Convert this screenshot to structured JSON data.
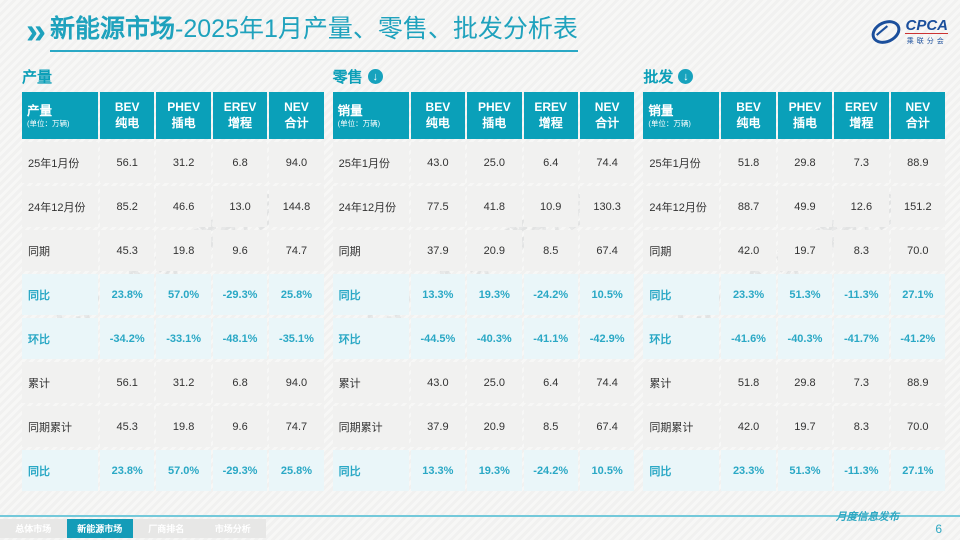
{
  "slide": {
    "title_bold": "新能源市场",
    "title_rest": "-2025年1月产量、零售、批发分析表",
    "publish_label": "月度信息发布",
    "page_number": "6"
  },
  "logo": {
    "name": "CPCA",
    "subtitle": "乘联分会",
    "watermark": "CPCA 乘联分会"
  },
  "tables": [
    {
      "section_label": "产量",
      "download_icon": false,
      "header": {
        "label": "产量",
        "unit": "(单位：万辆)",
        "columns": [
          {
            "en": "BEV",
            "cn": "纯电"
          },
          {
            "en": "PHEV",
            "cn": "插电"
          },
          {
            "en": "EREV",
            "cn": "增程"
          },
          {
            "en": "NEV",
            "cn": "合计"
          }
        ]
      },
      "rows": [
        {
          "label": "25年1月份",
          "type": "data",
          "values": [
            "56.1",
            "31.2",
            "6.8",
            "94.0"
          ]
        },
        {
          "label": "24年12月份",
          "type": "data",
          "values": [
            "85.2",
            "46.6",
            "13.0",
            "144.8"
          ]
        },
        {
          "label": "同期",
          "type": "data",
          "values": [
            "45.3",
            "19.8",
            "9.6",
            "74.7"
          ]
        },
        {
          "label": "同比",
          "type": "pct",
          "values": [
            "23.8%",
            "57.0%",
            "-29.3%",
            "25.8%"
          ]
        },
        {
          "label": "环比",
          "type": "pct",
          "values": [
            "-34.2%",
            "-33.1%",
            "-48.1%",
            "-35.1%"
          ]
        },
        {
          "label": "累计",
          "type": "data",
          "values": [
            "56.1",
            "31.2",
            "6.8",
            "94.0"
          ]
        },
        {
          "label": "同期累计",
          "type": "data",
          "values": [
            "45.3",
            "19.8",
            "9.6",
            "74.7"
          ]
        },
        {
          "label": "同比",
          "type": "pct",
          "values": [
            "23.8%",
            "57.0%",
            "-29.3%",
            "25.8%"
          ]
        }
      ]
    },
    {
      "section_label": "零售",
      "download_icon": true,
      "header": {
        "label": "销量",
        "unit": "(单位：万辆)",
        "columns": [
          {
            "en": "BEV",
            "cn": "纯电"
          },
          {
            "en": "PHEV",
            "cn": "插电"
          },
          {
            "en": "EREV",
            "cn": "增程"
          },
          {
            "en": "NEV",
            "cn": "合计"
          }
        ]
      },
      "rows": [
        {
          "label": "25年1月份",
          "type": "data",
          "values": [
            "43.0",
            "25.0",
            "6.4",
            "74.4"
          ]
        },
        {
          "label": "24年12月份",
          "type": "data",
          "values": [
            "77.5",
            "41.8",
            "10.9",
            "130.3"
          ]
        },
        {
          "label": "同期",
          "type": "data",
          "values": [
            "37.9",
            "20.9",
            "8.5",
            "67.4"
          ]
        },
        {
          "label": "同比",
          "type": "pct",
          "values": [
            "13.3%",
            "19.3%",
            "-24.2%",
            "10.5%"
          ]
        },
        {
          "label": "环比",
          "type": "pct",
          "values": [
            "-44.5%",
            "-40.3%",
            "-41.1%",
            "-42.9%"
          ]
        },
        {
          "label": "累计",
          "type": "data",
          "values": [
            "43.0",
            "25.0",
            "6.4",
            "74.4"
          ]
        },
        {
          "label": "同期累计",
          "type": "data",
          "values": [
            "37.9",
            "20.9",
            "8.5",
            "67.4"
          ]
        },
        {
          "label": "同比",
          "type": "pct",
          "values": [
            "13.3%",
            "19.3%",
            "-24.2%",
            "10.5%"
          ]
        }
      ]
    },
    {
      "section_label": "批发",
      "download_icon": true,
      "header": {
        "label": "销量",
        "unit": "(单位：万辆)",
        "columns": [
          {
            "en": "BEV",
            "cn": "纯电"
          },
          {
            "en": "PHEV",
            "cn": "插电"
          },
          {
            "en": "EREV",
            "cn": "增程"
          },
          {
            "en": "NEV",
            "cn": "合计"
          }
        ]
      },
      "rows": [
        {
          "label": "25年1月份",
          "type": "data",
          "values": [
            "51.8",
            "29.8",
            "7.3",
            "88.9"
          ]
        },
        {
          "label": "24年12月份",
          "type": "data",
          "values": [
            "88.7",
            "49.9",
            "12.6",
            "151.2"
          ]
        },
        {
          "label": "同期",
          "type": "data",
          "values": [
            "42.0",
            "19.7",
            "8.3",
            "70.0"
          ]
        },
        {
          "label": "同比",
          "type": "pct",
          "values": [
            "23.3%",
            "51.3%",
            "-11.3%",
            "27.1%"
          ]
        },
        {
          "label": "环比",
          "type": "pct",
          "values": [
            "-41.6%",
            "-40.3%",
            "-41.7%",
            "-41.2%"
          ]
        },
        {
          "label": "累计",
          "type": "data",
          "values": [
            "51.8",
            "29.8",
            "7.3",
            "88.9"
          ]
        },
        {
          "label": "同期累计",
          "type": "data",
          "values": [
            "42.0",
            "19.7",
            "8.3",
            "70.0"
          ]
        },
        {
          "label": "同比",
          "type": "pct",
          "values": [
            "23.3%",
            "51.3%",
            "-11.3%",
            "27.1%"
          ]
        }
      ]
    }
  ],
  "footer_tabs": [
    {
      "label": "总体市场",
      "active": false
    },
    {
      "label": "新能源市场",
      "active": true
    },
    {
      "label": "厂商排名",
      "active": false
    },
    {
      "label": "市场分析",
      "active": false
    }
  ],
  "colors": {
    "accent_teal": "#0aa0b9",
    "title_teal": "#1fa2bd",
    "pct_text": "#2aa8c5",
    "pct_row_bg": "#eaf6f9",
    "row_bg": "#f1f1f0",
    "active_tab": "#149cb8",
    "inactive_tab": "#e7e7e6",
    "logo_blue": "#1b4f9c"
  }
}
